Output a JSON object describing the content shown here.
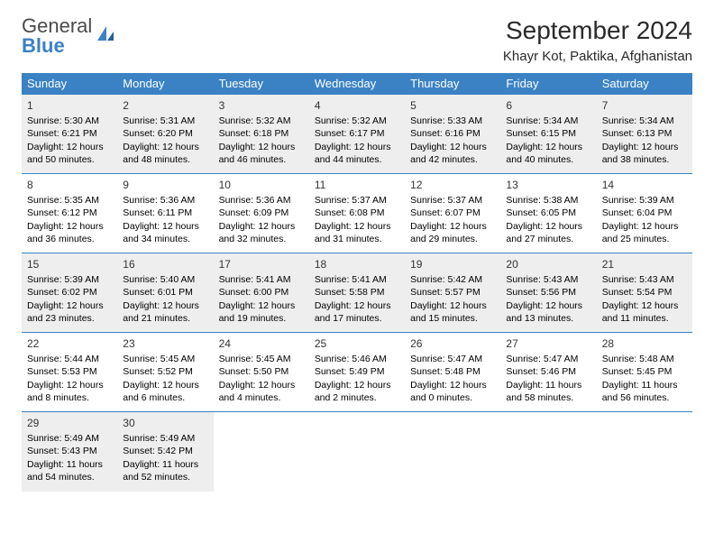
{
  "logo": {
    "line1": "General",
    "line2": "Blue"
  },
  "title": "September 2024",
  "location": "Khayr Kot, Paktika, Afghanistan",
  "colors": {
    "header_bg": "#3b82c4",
    "header_fg": "#ffffff",
    "rule": "#3b82c4",
    "shade": "#eeeeee"
  },
  "weekdays": [
    "Sunday",
    "Monday",
    "Tuesday",
    "Wednesday",
    "Thursday",
    "Friday",
    "Saturday"
  ],
  "start_offset": 0,
  "days": [
    {
      "n": 1,
      "sr": "5:30 AM",
      "ss": "6:21 PM",
      "dl": "12 hours and 50 minutes."
    },
    {
      "n": 2,
      "sr": "5:31 AM",
      "ss": "6:20 PM",
      "dl": "12 hours and 48 minutes."
    },
    {
      "n": 3,
      "sr": "5:32 AM",
      "ss": "6:18 PM",
      "dl": "12 hours and 46 minutes."
    },
    {
      "n": 4,
      "sr": "5:32 AM",
      "ss": "6:17 PM",
      "dl": "12 hours and 44 minutes."
    },
    {
      "n": 5,
      "sr": "5:33 AM",
      "ss": "6:16 PM",
      "dl": "12 hours and 42 minutes."
    },
    {
      "n": 6,
      "sr": "5:34 AM",
      "ss": "6:15 PM",
      "dl": "12 hours and 40 minutes."
    },
    {
      "n": 7,
      "sr": "5:34 AM",
      "ss": "6:13 PM",
      "dl": "12 hours and 38 minutes."
    },
    {
      "n": 8,
      "sr": "5:35 AM",
      "ss": "6:12 PM",
      "dl": "12 hours and 36 minutes."
    },
    {
      "n": 9,
      "sr": "5:36 AM",
      "ss": "6:11 PM",
      "dl": "12 hours and 34 minutes."
    },
    {
      "n": 10,
      "sr": "5:36 AM",
      "ss": "6:09 PM",
      "dl": "12 hours and 32 minutes."
    },
    {
      "n": 11,
      "sr": "5:37 AM",
      "ss": "6:08 PM",
      "dl": "12 hours and 31 minutes."
    },
    {
      "n": 12,
      "sr": "5:37 AM",
      "ss": "6:07 PM",
      "dl": "12 hours and 29 minutes."
    },
    {
      "n": 13,
      "sr": "5:38 AM",
      "ss": "6:05 PM",
      "dl": "12 hours and 27 minutes."
    },
    {
      "n": 14,
      "sr": "5:39 AM",
      "ss": "6:04 PM",
      "dl": "12 hours and 25 minutes."
    },
    {
      "n": 15,
      "sr": "5:39 AM",
      "ss": "6:02 PM",
      "dl": "12 hours and 23 minutes."
    },
    {
      "n": 16,
      "sr": "5:40 AM",
      "ss": "6:01 PM",
      "dl": "12 hours and 21 minutes."
    },
    {
      "n": 17,
      "sr": "5:41 AM",
      "ss": "6:00 PM",
      "dl": "12 hours and 19 minutes."
    },
    {
      "n": 18,
      "sr": "5:41 AM",
      "ss": "5:58 PM",
      "dl": "12 hours and 17 minutes."
    },
    {
      "n": 19,
      "sr": "5:42 AM",
      "ss": "5:57 PM",
      "dl": "12 hours and 15 minutes."
    },
    {
      "n": 20,
      "sr": "5:43 AM",
      "ss": "5:56 PM",
      "dl": "12 hours and 13 minutes."
    },
    {
      "n": 21,
      "sr": "5:43 AM",
      "ss": "5:54 PM",
      "dl": "12 hours and 11 minutes."
    },
    {
      "n": 22,
      "sr": "5:44 AM",
      "ss": "5:53 PM",
      "dl": "12 hours and 8 minutes."
    },
    {
      "n": 23,
      "sr": "5:45 AM",
      "ss": "5:52 PM",
      "dl": "12 hours and 6 minutes."
    },
    {
      "n": 24,
      "sr": "5:45 AM",
      "ss": "5:50 PM",
      "dl": "12 hours and 4 minutes."
    },
    {
      "n": 25,
      "sr": "5:46 AM",
      "ss": "5:49 PM",
      "dl": "12 hours and 2 minutes."
    },
    {
      "n": 26,
      "sr": "5:47 AM",
      "ss": "5:48 PM",
      "dl": "12 hours and 0 minutes."
    },
    {
      "n": 27,
      "sr": "5:47 AM",
      "ss": "5:46 PM",
      "dl": "11 hours and 58 minutes."
    },
    {
      "n": 28,
      "sr": "5:48 AM",
      "ss": "5:45 PM",
      "dl": "11 hours and 56 minutes."
    },
    {
      "n": 29,
      "sr": "5:49 AM",
      "ss": "5:43 PM",
      "dl": "11 hours and 54 minutes."
    },
    {
      "n": 30,
      "sr": "5:49 AM",
      "ss": "5:42 PM",
      "dl": "11 hours and 52 minutes."
    }
  ],
  "labels": {
    "sunrise": "Sunrise:",
    "sunset": "Sunset:",
    "daylight": "Daylight:"
  }
}
